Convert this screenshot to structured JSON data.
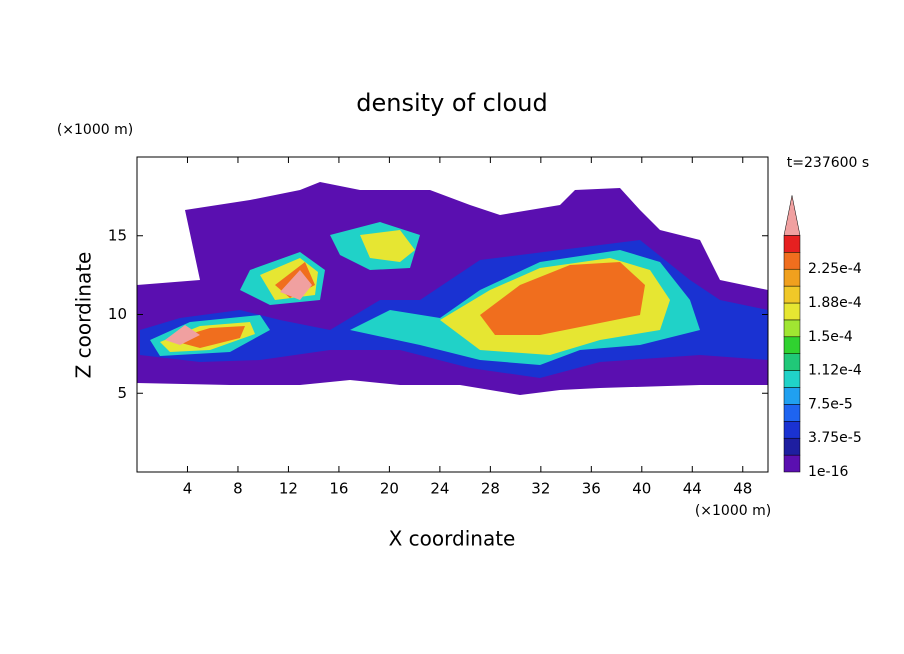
{
  "chart_data": {
    "type": "contour",
    "title": "density of cloud",
    "x_label": "X coordinate",
    "y_label": "Z coordinate",
    "x_unit": "(×1000 m)",
    "y_unit": "(×1000 m)",
    "annotation": "t=237600 s",
    "xlim": [
      0,
      50
    ],
    "ylim": [
      0,
      20
    ],
    "xticks": [
      4,
      8,
      12,
      16,
      20,
      24,
      28,
      32,
      36,
      40,
      44,
      48
    ],
    "yticks": [
      5,
      10,
      15
    ],
    "colorbar": {
      "levels": [
        {
          "value": 1e-16,
          "label": "1e-16"
        },
        1.875e-05,
        {
          "value": 3.75e-05,
          "label": "3.75e-5"
        },
        5.625e-05,
        {
          "value": 7.5e-05,
          "label": "7.5e-5"
        },
        9.375e-05,
        {
          "value": 0.0001125,
          "label": "1.12e-4"
        },
        0.00013125,
        {
          "value": 0.00015,
          "label": "1.5e-4"
        },
        0.00016875,
        {
          "value": 0.0001875,
          "label": "1.88e-4"
        },
        0.00020625,
        {
          "value": 0.000225,
          "label": "2.25e-4"
        },
        0.00024375
      ],
      "colors": [
        "#5a0fb0",
        "#1e1ea0",
        "#1a32d2",
        "#1e64f0",
        "#20a0f0",
        "#20d2c8",
        "#20c878",
        "#30d230",
        "#a0e632",
        "#e6e632",
        "#f0c828",
        "#f0a01e",
        "#f06e1e",
        "#e62020"
      ],
      "extend_color": "#f0a0a0"
    }
  }
}
